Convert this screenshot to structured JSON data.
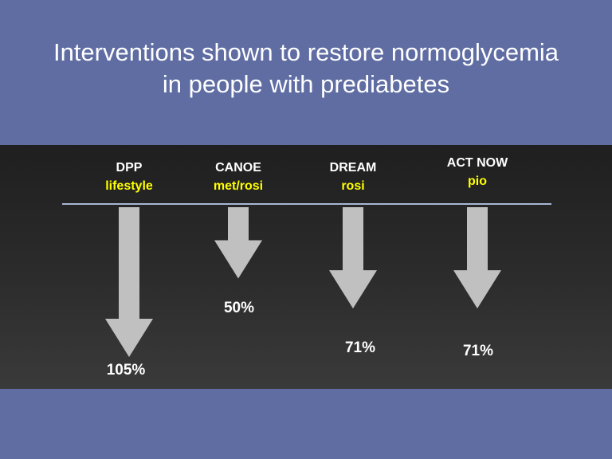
{
  "slide": {
    "title_line_1": "Interventions shown to restore normoglycemia",
    "title_line_2": "in people with prediabetes"
  },
  "colors": {
    "background": "#5f6da3",
    "panel": "#2a2a2a",
    "arrow": "#c0c0c0",
    "study_label": "#ffffff",
    "intervention_label": "#ffff00",
    "value_label": "#ffffff",
    "baseline": "#a9b6d6"
  },
  "chart_data": {
    "type": "bar",
    "orientation": "downward-arrows",
    "categories": [
      "DPP",
      "CANOE",
      "DREAM",
      "ACT NOW"
    ],
    "interventions": [
      "lifestyle",
      "met/rosi",
      "rosi",
      "pio"
    ],
    "values": [
      105,
      50,
      71,
      71
    ],
    "value_labels": [
      "105%",
      "50%",
      "71%",
      "71%"
    ],
    "title": "Interventions shown to restore normoglycemia in people with prediabetes"
  }
}
